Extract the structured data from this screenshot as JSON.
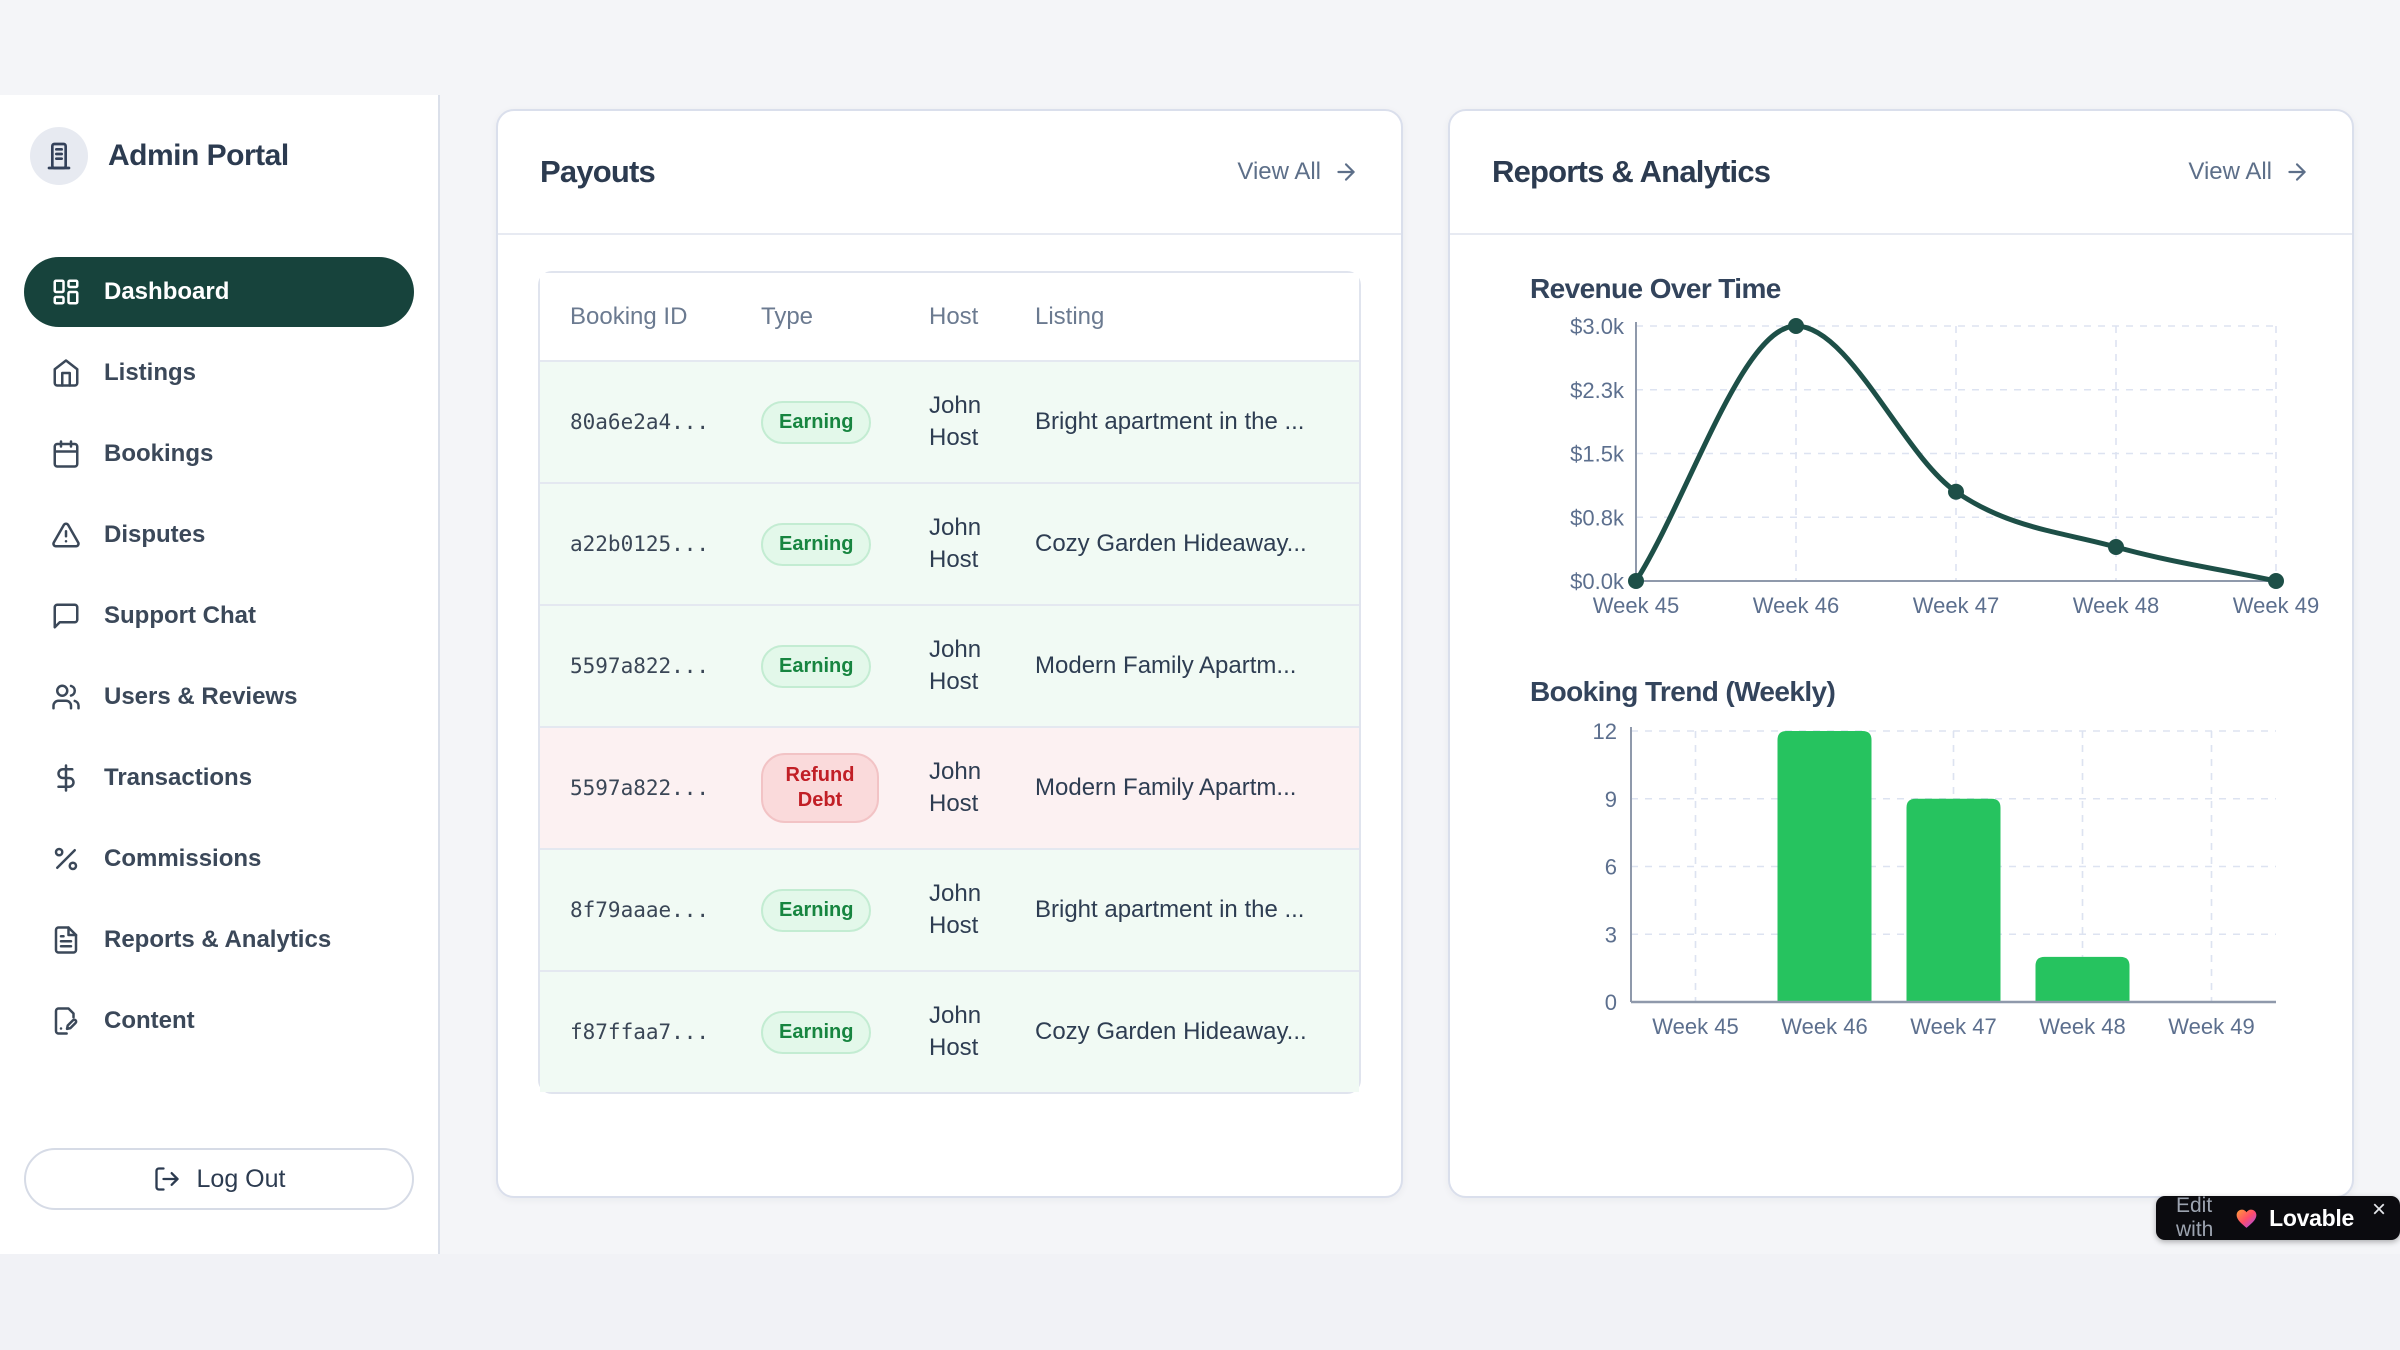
{
  "sidebar": {
    "brand": "Admin Portal",
    "items": [
      {
        "icon": "layout-dashboard",
        "label": "Dashboard",
        "active": true
      },
      {
        "icon": "home",
        "label": "Listings",
        "active": false
      },
      {
        "icon": "calendar",
        "label": "Bookings",
        "active": false
      },
      {
        "icon": "alert-triangle",
        "label": "Disputes",
        "active": false
      },
      {
        "icon": "message-square",
        "label": "Support Chat",
        "active": false
      },
      {
        "icon": "users",
        "label": "Users & Reviews",
        "active": false
      },
      {
        "icon": "dollar-sign",
        "label": "Transactions",
        "active": false
      },
      {
        "icon": "percent",
        "label": "Commissions",
        "active": false
      },
      {
        "icon": "file-text",
        "label": "Reports & Analytics",
        "active": false
      },
      {
        "icon": "file-pen",
        "label": "Content",
        "active": false
      }
    ],
    "logout_label": "Log Out"
  },
  "payouts": {
    "title": "Payouts",
    "view_all": "View All",
    "table": {
      "columns": [
        "Booking ID",
        "Type",
        "Host",
        "Listing"
      ],
      "rows": [
        {
          "booking_id": "80a6e2a4...",
          "type": "Earning",
          "host": "John Host",
          "listing": "Bright apartment in the ...",
          "tone": "earning"
        },
        {
          "booking_id": "a22b0125...",
          "type": "Earning",
          "host": "John Host",
          "listing": "Cozy Garden Hideaway...",
          "tone": "earning"
        },
        {
          "booking_id": "5597a822...",
          "type": "Earning",
          "host": "John Host",
          "listing": "Modern Family Apartm...",
          "tone": "earning"
        },
        {
          "booking_id": "5597a822...",
          "type": "Refund Debt",
          "host": "John Host",
          "listing": "Modern Family Apartm...",
          "tone": "refund"
        },
        {
          "booking_id": "8f79aaae...",
          "type": "Earning",
          "host": "John Host",
          "listing": "Bright apartment in the ...",
          "tone": "earning"
        },
        {
          "booking_id": "f87ffaa7...",
          "type": "Earning",
          "host": "John Host",
          "listing": "Cozy Garden Hideaway...",
          "tone": "earning"
        }
      ]
    }
  },
  "reports": {
    "title": "Reports & Analytics",
    "view_all": "View All"
  },
  "chart_data": [
    {
      "type": "line",
      "title": "Revenue Over Time",
      "categories": [
        "Week 45",
        "Week 46",
        "Week 47",
        "Week 48",
        "Week 49"
      ],
      "values": [
        0,
        3000,
        1050,
        400,
        0
      ],
      "y_tick_values": [
        3000,
        2250,
        1500,
        750,
        0
      ],
      "y_tick_labels": [
        "$3.0k",
        "$2.3k",
        "$1.5k",
        "$0.8k",
        "$0.0k"
      ],
      "ylim": [
        0,
        3000
      ],
      "xlabel": "",
      "ylabel": "",
      "grid": "dashed",
      "legend": "none",
      "line_color": "#1d4f47"
    },
    {
      "type": "bar",
      "title": "Booking Trend (Weekly)",
      "categories": [
        "Week 45",
        "Week 46",
        "Week 47",
        "Week 48",
        "Week 49"
      ],
      "values": [
        0,
        12,
        9,
        2,
        0
      ],
      "y_tick_values": [
        12,
        9,
        6,
        3,
        0
      ],
      "y_tick_labels": [
        "12",
        "9",
        "6",
        "3",
        "0"
      ],
      "ylim": [
        0,
        12
      ],
      "xlabel": "",
      "ylabel": "",
      "grid": "dashed",
      "legend": "none",
      "bar_color": "#26c35f"
    }
  ],
  "lovable_badge": {
    "prefix": "Edit with",
    "brand": "Lovable",
    "close": "×"
  },
  "colors": {
    "accent_dark_teal": "#17433c",
    "line_teal": "#1d4f47",
    "bar_green": "#26c35f",
    "earning_text": "#178540",
    "earning_bg": "#e3f8ea",
    "refund_text": "#c11f26",
    "refund_bg": "#fadadb",
    "grid_dash": "#dde3f1",
    "axis": "#8f99ab"
  }
}
